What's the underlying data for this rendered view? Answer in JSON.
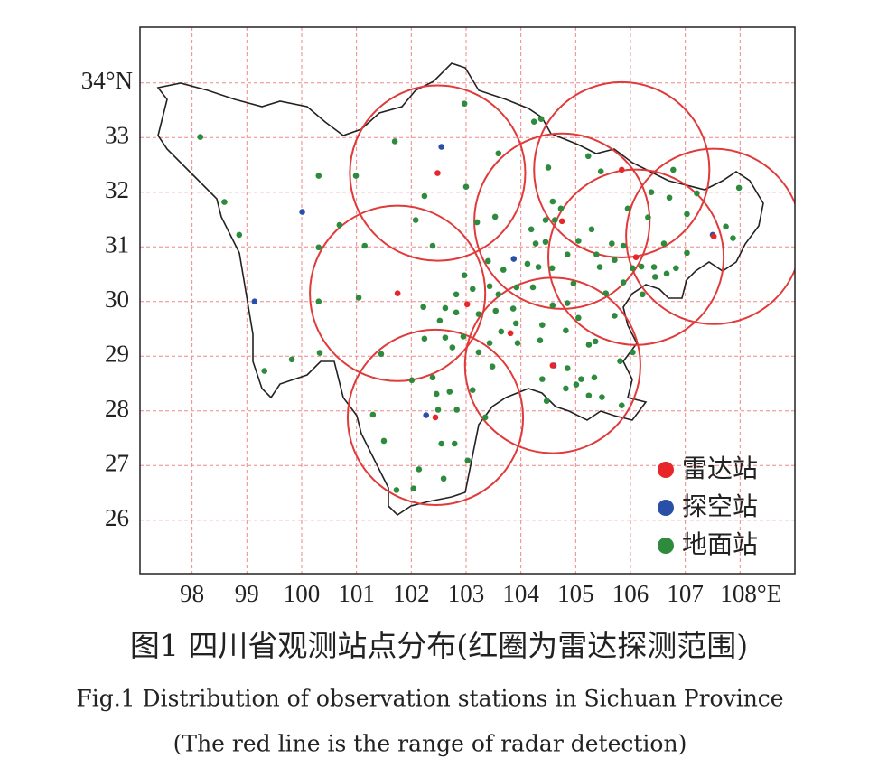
{
  "chart_data": {
    "type": "scatter",
    "caption": "图1 四川省观测站点分布(红圈为雷达探测范围)",
    "caption_en": "Fig.1 Distribution of observation stations in Sichuan Province",
    "caption_en_note": "(The red line is the range of radar detection)",
    "xlim": [
      97.05,
      109
    ],
    "ylim": [
      25.02,
      35.02
    ],
    "xticks": [
      98,
      99,
      100,
      101,
      102,
      103,
      104,
      105,
      106,
      107,
      {
        "value": 108,
        "label": "108°E"
      }
    ],
    "yticks": [
      26,
      27,
      28,
      29,
      30,
      31,
      32,
      33,
      {
        "value": 34,
        "label": "34°N"
      }
    ],
    "grid": true,
    "series": [
      {
        "name": "雷达站",
        "color": "#e8262a",
        "x": [
          102.48,
          104.75,
          101.75,
          102.44,
          104.58,
          105.84,
          106.1,
          107.52,
          103.02,
          103.81
        ],
        "y": [
          32.35,
          31.47,
          30.15,
          27.88,
          28.83,
          32.41,
          30.81,
          31.19,
          29.95,
          29.42
        ]
      },
      {
        "name": "探空站",
        "color": "#2a4fa8",
        "x": [
          102.55,
          100.01,
          99.14,
          103.87,
          104.6,
          102.27,
          107.5
        ],
        "y": [
          32.83,
          31.64,
          30.0,
          30.78,
          28.83,
          27.92,
          31.22
        ]
      },
      {
        "name": "地面站",
        "color": "#2e8b3e",
        "x": [
          98.15,
          98.59,
          98.86,
          99.32,
          99.82,
          100.31,
          100.99,
          100.69,
          100.31,
          100.31,
          100.33,
          101.15,
          101.04,
          101.45,
          101.3,
          101.5,
          101.7,
          102.24,
          102.08,
          102.39,
          102.22,
          102.24,
          102.01,
          102.39,
          102.7,
          102.46,
          102.49,
          102.83,
          102.97,
          103.0,
          103.2,
          102.82,
          102.82,
          102.52,
          102.62,
          102.75,
          102.95,
          103.12,
          103.4,
          103.43,
          103.23,
          103.54,
          103.59,
          103.68,
          103.92,
          103.86,
          103.91,
          104.22,
          104.12,
          104.27,
          104.19,
          104.45,
          104.45,
          104.32,
          104.57,
          104.58,
          104.85,
          104.82,
          104.96,
          104.62,
          104.5,
          104.58,
          104.73,
          105.05,
          104.85,
          105.29,
          105.38,
          105.66,
          105.87,
          105.71,
          105.44,
          106.04,
          106.32,
          106.38,
          106.61,
          106.78,
          106.71,
          106.83,
          107.03,
          107.03,
          107.21,
          107.74,
          107.87,
          107.98,
          106.2,
          106.45,
          106.66,
          106.43,
          105.95,
          105.46,
          105.23,
          104.37,
          104.24,
          103.59,
          103.53,
          103.64,
          103.43,
          103.23,
          103.48,
          103.94,
          104.35,
          104.39,
          105.05,
          105.24,
          105.34,
          105.1,
          104.85,
          104.39,
          104.47,
          104.82,
          105.01,
          105.24,
          105.48,
          105.84,
          105.81,
          106.04,
          105.71,
          105.55,
          105.87,
          106.22,
          103.03,
          102.79,
          102.55,
          102.59,
          102.14,
          101.73,
          102.04,
          103.12,
          103.35,
          102.62,
          102.97,
          105.36
        ],
        "y": [
          33.01,
          31.82,
          31.22,
          28.73,
          28.94,
          32.3,
          32.3,
          31.4,
          30.99,
          30.0,
          29.06,
          31.02,
          30.07,
          29.04,
          27.93,
          27.45,
          32.93,
          31.93,
          31.49,
          31.02,
          29.9,
          29.32,
          28.56,
          28.61,
          28.35,
          28.31,
          28.02,
          28.02,
          33.62,
          32.1,
          31.45,
          30.13,
          29.8,
          29.65,
          29.34,
          29.16,
          29.36,
          30.23,
          30.74,
          30.28,
          29.77,
          29.83,
          30.13,
          30.58,
          30.26,
          29.87,
          29.6,
          30.26,
          30.69,
          31.06,
          31.32,
          31.49,
          31.09,
          30.63,
          30.61,
          29.93,
          29.97,
          29.47,
          30.33,
          31.49,
          32.45,
          31.83,
          31.7,
          31.11,
          30.86,
          31.32,
          30.86,
          31.06,
          31.02,
          30.76,
          30.63,
          30.61,
          31.54,
          32.0,
          31.06,
          32.41,
          31.9,
          30.61,
          31.6,
          30.89,
          31.98,
          31.37,
          31.16,
          32.08,
          30.64,
          30.45,
          30.51,
          30.63,
          31.7,
          32.38,
          32.66,
          33.34,
          33.29,
          32.71,
          31.55,
          29.45,
          29.24,
          29.07,
          28.81,
          29.24,
          29.29,
          29.57,
          29.7,
          29.21,
          28.61,
          28.58,
          28.78,
          28.58,
          28.18,
          28.41,
          28.48,
          28.28,
          28.25,
          28.1,
          28.91,
          29.07,
          29.74,
          30.15,
          30.35,
          30.13,
          27.09,
          27.4,
          27.4,
          26.76,
          26.93,
          26.55,
          26.58,
          28.38,
          27.88,
          29.88,
          30.48,
          29.27
        ]
      }
    ],
    "radar_ranges": [
      {
        "x": 102.48,
        "y": 32.35,
        "r": 1.6
      },
      {
        "x": 104.75,
        "y": 31.47,
        "r": 1.6
      },
      {
        "x": 101.75,
        "y": 30.15,
        "r": 1.6
      },
      {
        "x": 102.44,
        "y": 27.88,
        "r": 1.6
      },
      {
        "x": 104.58,
        "y": 28.83,
        "r": 1.6
      },
      {
        "x": 105.84,
        "y": 32.41,
        "r": 1.6
      },
      {
        "x": 106.1,
        "y": 30.81,
        "r": 1.6
      },
      {
        "x": 107.52,
        "y": 31.19,
        "r": 1.6
      }
    ]
  }
}
